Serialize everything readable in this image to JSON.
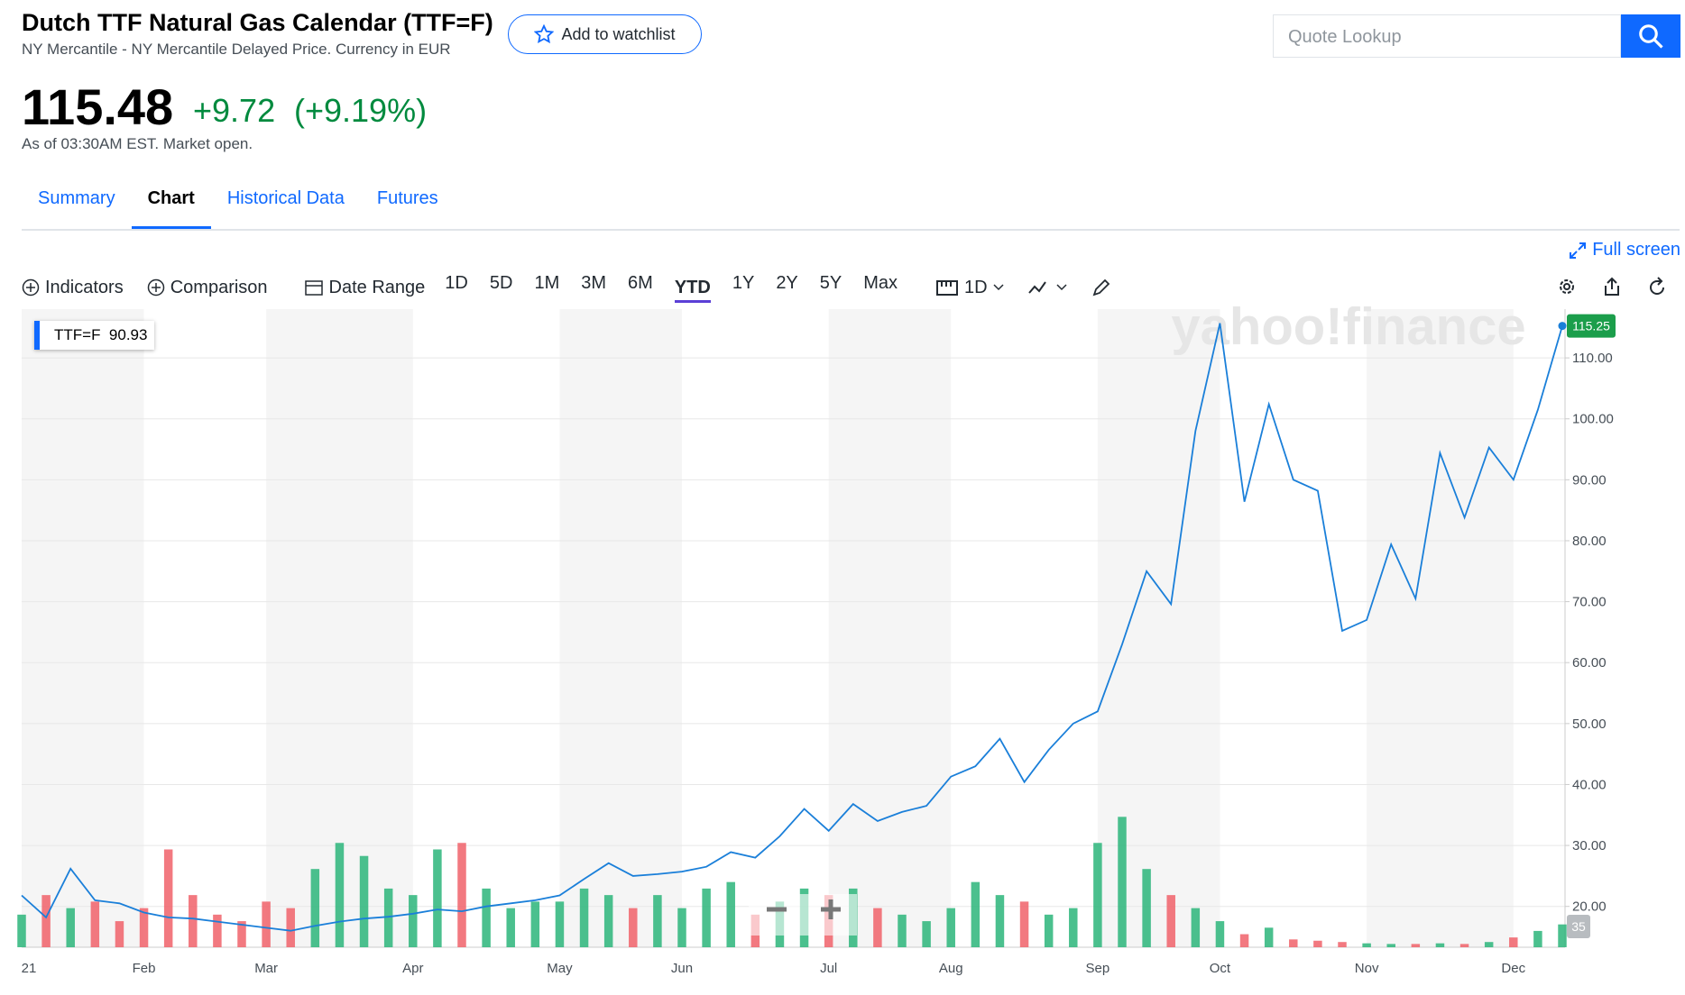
{
  "header": {
    "title": "Dutch TTF Natural Gas Calendar (TTF=F)",
    "subtitle": "NY Mercantile - NY Mercantile Delayed Price. Currency in EUR",
    "watchlist": "Add to watchlist",
    "search_placeholder": "Quote Lookup"
  },
  "quote": {
    "price": "115.48",
    "change": "+9.72",
    "change_pct": "(+9.19%)",
    "as_of": "As of 03:30AM EST. Market open."
  },
  "tabs": [
    "Summary",
    "Chart",
    "Historical Data",
    "Futures"
  ],
  "active_tab": "Chart",
  "fullscreen": "Full screen",
  "toolbar": {
    "indicators": "Indicators",
    "comparison": "Comparison",
    "date_range": "Date Range",
    "ranges": [
      "1D",
      "5D",
      "1M",
      "3M",
      "6M",
      "YTD",
      "1Y",
      "2Y",
      "5Y",
      "Max"
    ],
    "active_range": "YTD",
    "interval": "1D"
  },
  "tooltip": {
    "symbol": "TTF=F",
    "value": "90.93"
  },
  "watermark": "yahoo!finance",
  "chart_data": {
    "type": "line",
    "categories": [
      "21",
      null,
      null,
      null,
      null,
      "Feb",
      null,
      null,
      null,
      null,
      "Mar",
      null,
      null,
      null,
      null,
      null,
      "Apr",
      null,
      null,
      null,
      null,
      null,
      "May",
      null,
      null,
      null,
      null,
      "Jun",
      null,
      null,
      null,
      null,
      null,
      "Jul",
      null,
      null,
      null,
      null,
      "Aug",
      null,
      null,
      null,
      null,
      null,
      "Sep",
      null,
      null,
      null,
      null,
      "Oct",
      null,
      null,
      null,
      null,
      null,
      "Nov",
      null,
      null,
      null,
      null,
      null,
      "Dec",
      null,
      null
    ],
    "series": [
      {
        "name": "TTF=F",
        "color": "#1a7fd9",
        "values": [
          21.8,
          18.2,
          26.2,
          21.0,
          20.5,
          19.0,
          18.2,
          18.0,
          17.5,
          17.0,
          16.5,
          16.0,
          16.8,
          17.5,
          18.0,
          18.3,
          18.8,
          19.5,
          19.2,
          20.0,
          20.5,
          21.0,
          21.8,
          24.5,
          27.1,
          25.0,
          25.3,
          25.7,
          26.5,
          28.9,
          28.0,
          31.5,
          36.0,
          32.4,
          36.8,
          34.0,
          35.5,
          36.5,
          41.3,
          43.0,
          47.5,
          40.4,
          45.7,
          50.0,
          52.0,
          63.0,
          75.0,
          69.6,
          98.0,
          115.7,
          86.4,
          102.4,
          90.0,
          88.2,
          65.2,
          67.0,
          79.4,
          70.5,
          94.4,
          83.8,
          95.3,
          90.0,
          101.5,
          115.25
        ]
      },
      {
        "name": "Volume",
        "axis": "y2",
        "up_color": "#2bb57a",
        "down_color": "#f0616a",
        "values": [
          50,
          80,
          60,
          70,
          40,
          60,
          150,
          80,
          50,
          40,
          70,
          60,
          120,
          160,
          140,
          90,
          80,
          150,
          160,
          90,
          60,
          70,
          70,
          90,
          80,
          60,
          80,
          60,
          90,
          100,
          50,
          70,
          90,
          80,
          90,
          60,
          50,
          40,
          60,
          100,
          80,
          70,
          50,
          60,
          160,
          200,
          120,
          80,
          60,
          40,
          20,
          30,
          12,
          10,
          8,
          6,
          5,
          5,
          6,
          5,
          8,
          15,
          25,
          35
        ]
      }
    ],
    "ylim": [
      13.3,
      118
    ],
    "yticks": [
      {
        "value": 20,
        "label": "20.00"
      },
      {
        "value": 30,
        "label": "30.00"
      },
      {
        "value": 40,
        "label": "40.00"
      },
      {
        "value": 50,
        "label": "50.00"
      },
      {
        "value": 60,
        "label": "60.00"
      },
      {
        "value": 70,
        "label": "70.00"
      },
      {
        "value": 80,
        "label": "80.00"
      },
      {
        "value": 90,
        "label": "90.00"
      },
      {
        "value": 100,
        "label": "100.00"
      },
      {
        "value": 110,
        "label": "110.00"
      }
    ],
    "y2lim": [
      0,
      235
    ],
    "grid": true
  }
}
